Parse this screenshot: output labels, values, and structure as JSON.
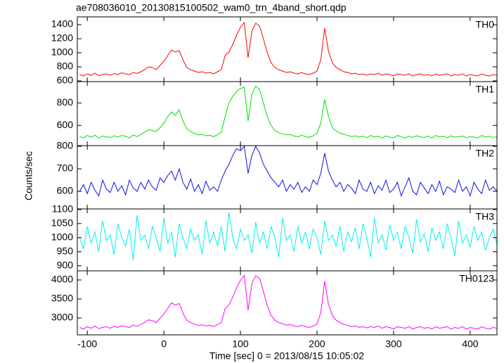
{
  "chart_data": {
    "type": "line",
    "title": "ae708036010_20130815100502_wam0_trn_4band_short.qdp",
    "ylabel": "Counts/sec",
    "xlabel": "Time [sec] 0 = 2013/08/15 10:05:02",
    "xlim": [
      -113,
      435
    ],
    "xticks": [
      -100,
      0,
      100,
      200,
      300,
      400
    ],
    "x": [
      -110,
      -105,
      -100,
      -95,
      -90,
      -85,
      -80,
      -75,
      -70,
      -65,
      -60,
      -55,
      -50,
      -45,
      -40,
      -35,
      -30,
      -25,
      -20,
      -15,
      -10,
      -5,
      0,
      5,
      10,
      15,
      20,
      25,
      30,
      35,
      40,
      45,
      50,
      55,
      60,
      65,
      70,
      75,
      80,
      85,
      90,
      95,
      100,
      105,
      110,
      115,
      120,
      125,
      130,
      135,
      140,
      145,
      150,
      155,
      160,
      165,
      170,
      175,
      180,
      185,
      190,
      195,
      200,
      205,
      210,
      215,
      220,
      225,
      230,
      235,
      240,
      245,
      250,
      255,
      260,
      265,
      270,
      275,
      280,
      285,
      290,
      295,
      300,
      305,
      310,
      315,
      320,
      325,
      330,
      335,
      340,
      345,
      350,
      355,
      360,
      365,
      370,
      375,
      380,
      385,
      390,
      395,
      400,
      405,
      410,
      415,
      420,
      425,
      430,
      435
    ],
    "series": [
      {
        "name": "TH0",
        "color": "#ff0000",
        "ylim": [
          590,
          1510
        ],
        "yticks": [
          600,
          800,
          1000,
          1200,
          1400
        ],
        "values": [
          690,
          670,
          700,
          680,
          710,
          675,
          690,
          700,
          680,
          705,
          690,
          715,
          700,
          690,
          720,
          705,
          730,
          760,
          800,
          790,
          760,
          820,
          880,
          960,
          1040,
          1010,
          1030,
          900,
          790,
          760,
          740,
          720,
          730,
          710,
          720,
          700,
          730,
          760,
          960,
          1010,
          1120,
          1250,
          1360,
          1430,
          930,
          1310,
          1420,
          1380,
          1200,
          1000,
          860,
          790,
          760,
          740,
          720,
          730,
          710,
          700,
          720,
          700,
          690,
          710,
          740,
          900,
          1350,
          1020,
          860,
          790,
          760,
          730,
          720,
          700,
          710,
          690,
          700,
          680,
          700,
          690,
          710,
          680,
          700,
          690,
          670,
          700,
          690,
          680,
          700,
          670,
          690,
          700,
          680,
          690,
          670,
          700,
          680,
          690,
          700,
          670,
          690,
          680,
          700,
          670,
          690,
          680,
          670,
          700,
          680,
          670,
          690,
          680
        ]
      },
      {
        "name": "TH1",
        "color": "#00e000",
        "ylim": [
          420,
          990
        ],
        "yticks": [
          600,
          800
        ],
        "values": [
          500,
          490,
          510,
          495,
          512,
          488,
          505,
          498,
          492,
          508,
          496,
          511,
          503,
          489,
          515,
          500,
          520,
          540,
          560,
          555,
          545,
          580,
          620,
          680,
          720,
          690,
          740,
          640,
          570,
          545,
          530,
          515,
          520,
          508,
          512,
          500,
          518,
          540,
          680,
          800,
          860,
          900,
          930,
          940,
          640,
          880,
          950,
          920,
          800,
          680,
          600,
          555,
          535,
          525,
          515,
          520,
          505,
          498,
          512,
          500,
          493,
          508,
          530,
          620,
          830,
          680,
          580,
          550,
          530,
          520,
          512,
          500,
          508,
          495,
          505,
          490,
          510,
          497,
          503,
          488,
          506,
          495,
          490,
          510,
          500,
          487,
          504,
          493,
          508,
          498,
          492,
          505,
          488,
          510,
          497,
          503,
          490,
          508,
          495,
          500,
          506,
          490,
          502,
          495,
          488,
          510,
          497,
          503,
          492,
          500
        ]
      },
      {
        "name": "TH2",
        "color": "#1010e0",
        "ylim": [
          522,
          803
        ],
        "yticks": [
          600,
          700,
          800
        ],
        "values": [
          600,
          630,
          590,
          640,
          605,
          580,
          650,
          610,
          595,
          640,
          600,
          625,
          585,
          650,
          615,
          600,
          640,
          610,
          650,
          620,
          605,
          660,
          640,
          670,
          690,
          650,
          700,
          640,
          610,
          655,
          600,
          630,
          590,
          645,
          605,
          620,
          600,
          650,
          690,
          720,
          760,
          790,
          780,
          800,
          680,
          760,
          800,
          770,
          720,
          690,
          660,
          640,
          620,
          650,
          600,
          630,
          610,
          640,
          595,
          620,
          600,
          650,
          630,
          680,
          770,
          690,
          650,
          620,
          640,
          600,
          630,
          615,
          590,
          650,
          610,
          600,
          640,
          590,
          625,
          605,
          650,
          595,
          610,
          640,
          580,
          620,
          660,
          600,
          585,
          640,
          615,
          590,
          630,
          600,
          645,
          585,
          620,
          610,
          595,
          650,
          600,
          620,
          580,
          640,
          610,
          590,
          650,
          605,
          620,
          600
        ]
      },
      {
        "name": "TH3",
        "color": "#00f0f0",
        "ylim": [
          882,
          1102
        ],
        "yticks": [
          900,
          950,
          1000,
          1050,
          1100
        ],
        "values": [
          1000,
          960,
          1040,
          980,
          1020,
          950,
          1060,
          990,
          1010,
          940,
          1050,
          1000,
          970,
          1030,
          920,
          1080,
          990,
          1010,
          960,
          1040,
          1000,
          950,
          1070,
          980,
          1020,
          930,
          1050,
          1000,
          960,
          1030,
          990,
          1010,
          940,
          1060,
          980,
          1020,
          970,
          1040,
          950,
          1090,
          1000,
          960,
          1030,
          990,
          1010,
          945,
          1055,
          980,
          1020,
          960,
          1040,
          1000,
          930,
          1070,
          990,
          1010,
          950,
          1040,
          980,
          1020,
          960,
          1030,
          1000,
          940,
          1060,
          990,
          1010,
          970,
          1040,
          950,
          1020,
          985,
          1035,
          960,
          1050,
          1000,
          930,
          1070,
          980,
          1010,
          955,
          1045,
          990,
          1020,
          960,
          1040,
          1000,
          945,
          1065,
          985,
          1015,
          950,
          1035,
          990,
          1020,
          960,
          1050,
          1000,
          935,
          1060,
          980,
          1010,
          965,
          1040,
          990,
          1020,
          955,
          1000,
          1030,
          975
        ]
      },
      {
        "name": "TH0123",
        "color": "#ff00ff",
        "ylim": [
          2556,
          4240
        ],
        "yticks": [
          3000,
          3500,
          4000
        ],
        "values": [
          2750,
          2710,
          2770,
          2730,
          2790,
          2720,
          2750,
          2770,
          2730,
          2780,
          2750,
          2800,
          2770,
          2750,
          2810,
          2780,
          2830,
          2880,
          2950,
          2930,
          2880,
          2990,
          3100,
          3250,
          3400,
          3340,
          3380,
          3130,
          2940,
          2880,
          2840,
          2810,
          2820,
          2790,
          2810,
          2770,
          2830,
          2880,
          3250,
          3340,
          3550,
          3790,
          3990,
          4120,
          3200,
          3910,
          4110,
          4040,
          3700,
          3330,
          3070,
          2940,
          2880,
          2850,
          2810,
          2830,
          2790,
          2770,
          2810,
          2770,
          2750,
          2790,
          2840,
          3140,
          3970,
          3360,
          3070,
          2940,
          2880,
          2830,
          2810,
          2770,
          2790,
          2750,
          2770,
          2740,
          2770,
          2750,
          2790,
          2730,
          2770,
          2750,
          2710,
          2770,
          2750,
          2730,
          2770,
          2710,
          2750,
          2770,
          2730,
          2750,
          2710,
          2770,
          2730,
          2750,
          2770,
          2710,
          2750,
          2730,
          2770,
          2710,
          2750,
          2730,
          2710,
          2770,
          2730,
          2710,
          2750,
          2730
        ]
      }
    ]
  }
}
